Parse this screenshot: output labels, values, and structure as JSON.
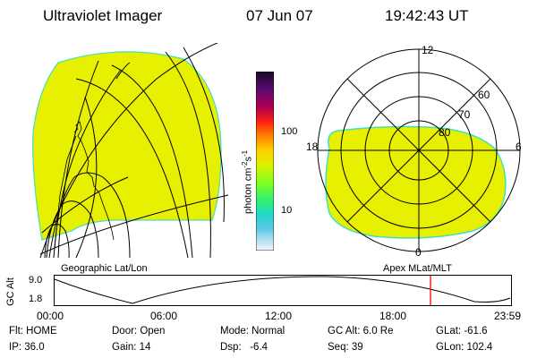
{
  "header": {
    "instrument": "Ultraviolet Imager",
    "date": "07 Jun 07",
    "time": "19:42:43 UT"
  },
  "colorbar": {
    "unit_label": "photon cm",
    "unit_exp1": "-2",
    "unit_mid": "s",
    "unit_exp2": "-1",
    "tick_100": "100",
    "tick_10": "10",
    "colors": [
      "#1a0a2a",
      "#3a0a50",
      "#7a0a80",
      "#c00040",
      "#ff3000",
      "#ff8000",
      "#ffd000",
      "#e0f000",
      "#a0ff20",
      "#40ff60",
      "#20e0c0",
      "#40c0e0",
      "#a0e0f0",
      "#e8f4f8"
    ]
  },
  "polar": {
    "label_12": "12",
    "label_18": "18",
    "label_6": "6",
    "label_0": "0",
    "label_60": "60",
    "label_70": "70",
    "label_80": "80"
  },
  "map_labels": {
    "left": "Geographic Lat/Lon",
    "right": "Apex MLat/MLT"
  },
  "altitude_plot": {
    "axis_label": "GC Alt",
    "y_top": "9.0",
    "y_bottom": "1.8",
    "x_ticks": [
      "00:00",
      "06:00",
      "12:00",
      "18:00",
      "23:59"
    ],
    "current_marker_color": "#ff0000"
  },
  "status": {
    "flt": "Flt: HOME",
    "ip": "IP: 36.0",
    "door": "Door: Open",
    "gain": "Gain: 14",
    "mode": "Mode: Normal",
    "dsp": "Dsp:   -6.4",
    "gc_alt": "GC Alt: 6.0 Re",
    "seq": "Seq: 39",
    "glat": "GLat: -61.6",
    "glon": "GLon: 102.4"
  },
  "colors": {
    "emission": "#e6f000",
    "emission_edge": "#40e0c0"
  }
}
